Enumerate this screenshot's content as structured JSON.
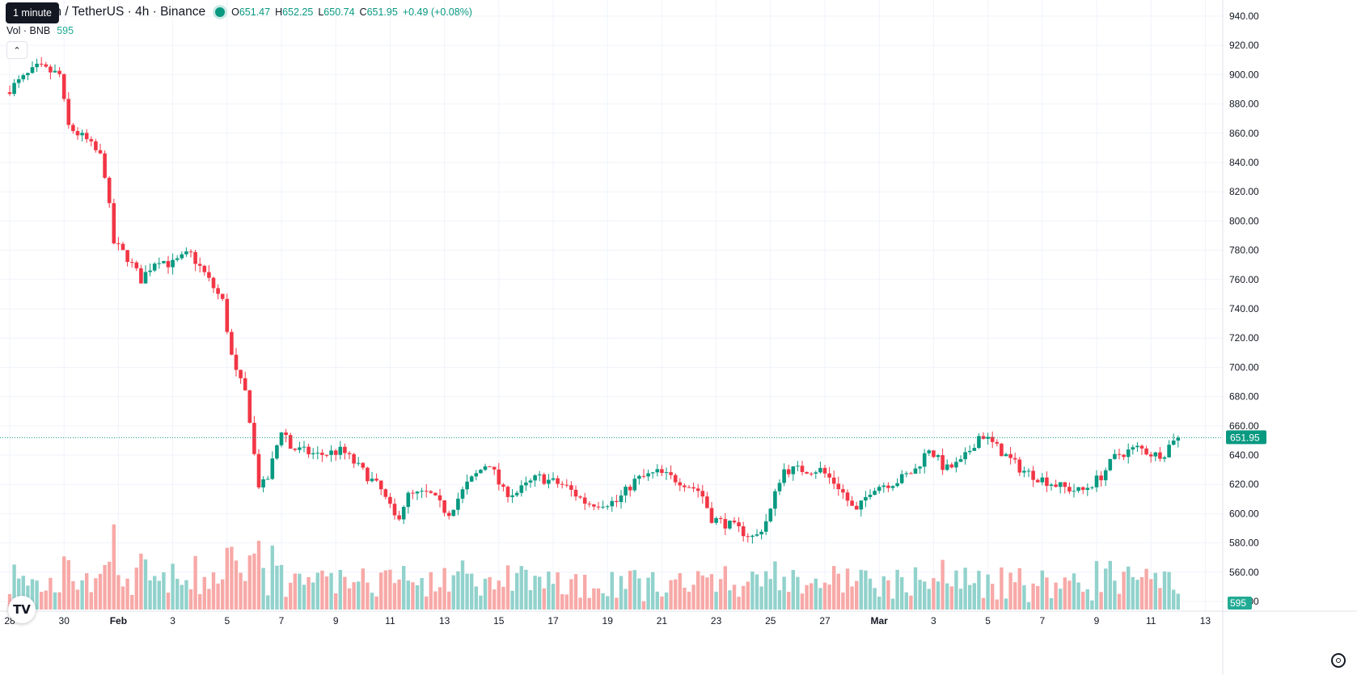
{
  "header": {
    "symbol": "BNB Coin / TetherUS · 4h · Binance",
    "tooltip": "1 minute",
    "ohlc": {
      "o_label": "O",
      "o": "651.47",
      "h_label": "H",
      "h": "652.25",
      "l_label": "L",
      "l": "650.74",
      "c_label": "C",
      "c": "651.95",
      "change": "+0.49 (+0.08%)"
    },
    "volume": {
      "label": "Vol · BNB",
      "value": "595"
    }
  },
  "colors": {
    "up": "#089981",
    "down": "#f23645",
    "vol_up": "#92d2cc",
    "vol_down": "#f7a9a7",
    "grid": "#f0f3fa",
    "last_price": "#089981"
  },
  "icons": {
    "collapse": "chevron-up-icon",
    "logo": "tradingview-logo-icon",
    "settings": "settings-gear-icon"
  },
  "chart_data": {
    "type": "candlestick",
    "interval": "4h",
    "price_axis": {
      "range": [
        545,
        945
      ],
      "ticks": [
        940,
        920,
        900,
        880,
        860,
        840,
        820,
        800,
        780,
        760,
        740,
        720,
        700,
        680,
        660,
        640,
        620,
        600,
        580,
        560,
        540
      ],
      "tick_labels": [
        "940.00",
        "920.00",
        "900.00",
        "880.00",
        "860.00",
        "840.00",
        "820.00",
        "800.00",
        "780.00",
        "760.00",
        "740.00",
        "720.00",
        "700.00",
        "680.00",
        "660.00",
        "640.00",
        "620.00",
        "600.00",
        "580.00",
        "560.00",
        "540.00"
      ]
    },
    "last_price": {
      "value": 651.95,
      "label": "651.95"
    },
    "volume_last": {
      "value": 595,
      "label": "595"
    },
    "time_axis": [
      {
        "label": "28",
        "day": 0
      },
      {
        "label": "30",
        "day": 2
      },
      {
        "label": "Feb",
        "day": 4
      },
      {
        "label": "3",
        "day": 6
      },
      {
        "label": "5",
        "day": 8
      },
      {
        "label": "7",
        "day": 10
      },
      {
        "label": "9",
        "day": 12
      },
      {
        "label": "11",
        "day": 14
      },
      {
        "label": "13",
        "day": 16
      },
      {
        "label": "15",
        "day": 18
      },
      {
        "label": "17",
        "day": 20
      },
      {
        "label": "19",
        "day": 22
      },
      {
        "label": "21",
        "day": 24
      },
      {
        "label": "23",
        "day": 26
      },
      {
        "label": "25",
        "day": 28
      },
      {
        "label": "27",
        "day": 30
      },
      {
        "label": "Mar",
        "day": 32
      },
      {
        "label": "3",
        "day": 34
      },
      {
        "label": "5",
        "day": 36
      },
      {
        "label": "7",
        "day": 38
      },
      {
        "label": "9",
        "day": 40
      },
      {
        "label": "11",
        "day": 42
      },
      {
        "label": "13",
        "day": 44
      }
    ],
    "anchors": [
      [
        0,
        888
      ],
      [
        1.2,
        905
      ],
      [
        2,
        900
      ],
      [
        2.3,
        865
      ],
      [
        3.0,
        855
      ],
      [
        3.6,
        842
      ],
      [
        4.0,
        785
      ],
      [
        4.5,
        775
      ],
      [
        5.0,
        760
      ],
      [
        5.6,
        775
      ],
      [
        6.1,
        770
      ],
      [
        6.8,
        778
      ],
      [
        7.3,
        765
      ],
      [
        8.0,
        745
      ],
      [
        8.4,
        700
      ],
      [
        8.9,
        680
      ],
      [
        9.3,
        620
      ],
      [
        9.6,
        620
      ],
      [
        9.9,
        640
      ],
      [
        10.2,
        660
      ],
      [
        10.5,
        645
      ],
      [
        11.5,
        640
      ],
      [
        12.4,
        643
      ],
      [
        13.1,
        630
      ],
      [
        13.8,
        617
      ],
      [
        14.4,
        595
      ],
      [
        14.8,
        612
      ],
      [
        15.6,
        614
      ],
      [
        16.3,
        600
      ],
      [
        17.0,
        620
      ],
      [
        17.8,
        636
      ],
      [
        18.3,
        615
      ],
      [
        18.8,
        614
      ],
      [
        19.6,
        625
      ],
      [
        20.6,
        619
      ],
      [
        21.4,
        607
      ],
      [
        22.5,
        608
      ],
      [
        23.2,
        623
      ],
      [
        24.0,
        628
      ],
      [
        24.9,
        622
      ],
      [
        25.6,
        615
      ],
      [
        26.0,
        597
      ],
      [
        26.8,
        591
      ],
      [
        27.6,
        583
      ],
      [
        28.1,
        598
      ],
      [
        28.6,
        630
      ],
      [
        29.3,
        630
      ],
      [
        30.0,
        630
      ],
      [
        30.7,
        618
      ],
      [
        31.3,
        600
      ],
      [
        31.9,
        618
      ],
      [
        32.8,
        622
      ],
      [
        33.5,
        630
      ],
      [
        34.0,
        645
      ],
      [
        34.6,
        630
      ],
      [
        35.2,
        635
      ],
      [
        35.9,
        655
      ],
      [
        36.5,
        645
      ],
      [
        37.4,
        630
      ],
      [
        38.1,
        624
      ],
      [
        38.9,
        618
      ],
      [
        39.6,
        615
      ],
      [
        40.3,
        625
      ],
      [
        40.9,
        640
      ],
      [
        41.7,
        645
      ],
      [
        42.3,
        640
      ],
      [
        42.7,
        642
      ],
      [
        43.0,
        651.95
      ]
    ]
  }
}
